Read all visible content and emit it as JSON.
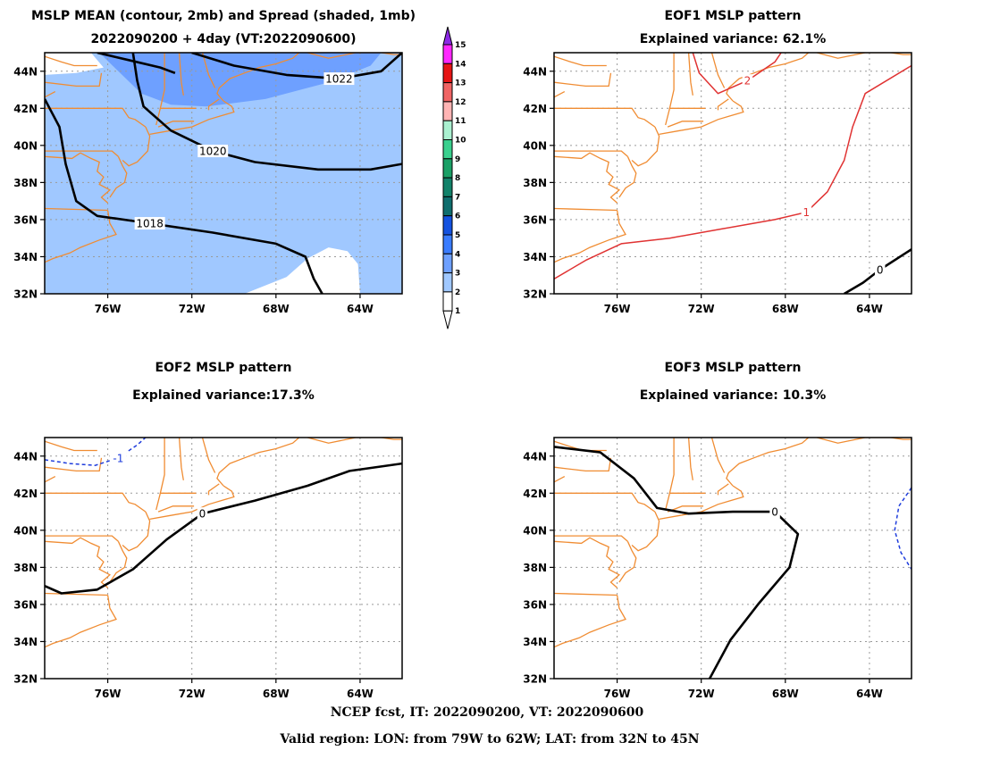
{
  "figure": {
    "footer_line1": "NCEP fcst, IT: 2022090200, VT: 2022090600",
    "footer_line2": "Valid region: LON: from 79W to 62W; LAT: from 32N to 45N"
  },
  "colorbar": {
    "labels": [
      "1",
      "2",
      "3",
      "4",
      "5",
      "6",
      "7",
      "8",
      "9",
      "10",
      "11",
      "12",
      "13",
      "14",
      "15"
    ],
    "colors": [
      "#ffffff",
      "#a0c8ff",
      "#6ea0ff",
      "#3a7cff",
      "#1452e0",
      "#0f6e6e",
      "#12826a",
      "#1aa066",
      "#3ad08e",
      "#aaf0d0",
      "#ffb4b4",
      "#f06464",
      "#e61414",
      "#ff28ff",
      "#8c28e6"
    ]
  },
  "chart_data": [
    {
      "type": "contour",
      "title": "MSLP MEAN (contour, 2mb) and Spread (shaded, 1mb)",
      "subtitle": "2022090200 + 4day (VT:2022090600)",
      "x_ticks": [
        "76W",
        "72W",
        "68W",
        "64W"
      ],
      "y_ticks": [
        "44N",
        "42N",
        "40N",
        "38N",
        "36N",
        "34N",
        "32N"
      ],
      "lon_range": [
        -79,
        -62
      ],
      "lat_range": [
        32,
        45
      ],
      "contours": [
        {
          "label": "1018",
          "color": "#000000",
          "points": [
            [
              -79,
              42.5
            ],
            [
              -78.3,
              41
            ],
            [
              -78,
              39
            ],
            [
              -77.5,
              37
            ],
            [
              -76.5,
              36.2
            ],
            [
              -74,
              35.8
            ],
            [
              -71,
              35.3
            ],
            [
              -68,
              34.7
            ],
            [
              -66.6,
              34
            ],
            [
              -66.2,
              32.8
            ],
            [
              -65.8,
              32
            ]
          ]
        },
        {
          "label": "1020",
          "color": "#000000",
          "points": [
            [
              -74.8,
              45
            ],
            [
              -74.6,
              43.5
            ],
            [
              -74.3,
              42.1
            ],
            [
              -73,
              40.8
            ],
            [
              -71,
              39.7
            ],
            [
              -69,
              39.1
            ],
            [
              -66,
              38.7
            ],
            [
              -63.5,
              38.7
            ],
            [
              -62,
              39
            ]
          ]
        },
        {
          "label": "1022",
          "color": "#000000",
          "points": [
            [
              -72,
              45
            ],
            [
              -70,
              44.3
            ],
            [
              -67.5,
              43.8
            ],
            [
              -65,
              43.6
            ],
            [
              -63,
              44
            ],
            [
              -62,
              45
            ]
          ]
        },
        {
          "label": "",
          "color": "#000000",
          "points": [
            [
              -76.5,
              45
            ],
            [
              -75,
              44.6
            ],
            [
              -73.5,
              44.2
            ],
            [
              -72.8,
              43.9
            ]
          ]
        }
      ],
      "spread_regions": [
        {
          "level": "1",
          "points": [
            [
              -79,
              45
            ],
            [
              -76.8,
              45
            ],
            [
              -76.2,
              44.2
            ],
            [
              -77.5,
              43.9
            ],
            [
              -79,
              43.8
            ]
          ]
        },
        {
          "level": "1",
          "points": [
            [
              -69.5,
              32
            ],
            [
              -67.5,
              32.9
            ],
            [
              -66.5,
              33.9
            ],
            [
              -65.5,
              34.5
            ],
            [
              -64.6,
              34.3
            ],
            [
              -64.1,
              33.6
            ],
            [
              -64,
              32
            ]
          ]
        },
        {
          "level": "3",
          "points": [
            [
              -76.4,
              45
            ],
            [
              -75.5,
              44
            ],
            [
              -74.4,
              42.8
            ],
            [
              -73,
              42.2
            ],
            [
              -71.3,
              42.1
            ],
            [
              -68.5,
              42.5
            ],
            [
              -65.5,
              43.4
            ],
            [
              -63.5,
              44.3
            ],
            [
              -63,
              45
            ]
          ]
        }
      ],
      "annotations": []
    },
    {
      "type": "contour",
      "title": "EOF1 MSLP pattern",
      "subtitle": "Explained variance: 62.1%",
      "x_ticks": [
        "76W",
        "72W",
        "68W",
        "64W"
      ],
      "y_ticks": [
        "44N",
        "42N",
        "40N",
        "38N",
        "36N",
        "34N",
        "32N"
      ],
      "lon_range": [
        -79,
        -62
      ],
      "lat_range": [
        32,
        45
      ],
      "contours": [
        {
          "label": "1",
          "color": "#e03232",
          "points": [
            [
              -79,
              32.8
            ],
            [
              -77.5,
              33.8
            ],
            [
              -75.8,
              34.7
            ],
            [
              -73.5,
              35
            ],
            [
              -71,
              35.5
            ],
            [
              -68.5,
              36
            ],
            [
              -67,
              36.4
            ],
            [
              -66,
              37.5
            ],
            [
              -65.2,
              39.2
            ],
            [
              -64.8,
              41
            ],
            [
              -64.2,
              42.8
            ],
            [
              -62,
              44.3
            ]
          ]
        },
        {
          "label": "2",
          "color": "#e03232",
          "points": [
            [
              -72.4,
              45
            ],
            [
              -72.1,
              43.9
            ],
            [
              -71.2,
              42.8
            ],
            [
              -69.8,
              43.5
            ],
            [
              -68.5,
              44.5
            ],
            [
              -68.2,
              45
            ]
          ]
        },
        {
          "label": "0",
          "color": "#000000",
          "points": [
            [
              -65.2,
              32
            ],
            [
              -64.3,
              32.6
            ],
            [
              -63.5,
              33.3
            ],
            [
              -62,
              34.4
            ]
          ]
        }
      ]
    },
    {
      "type": "contour",
      "title": "EOF2 MSLP pattern",
      "subtitle": "Explained variance:17.3%",
      "x_ticks": [
        "76W",
        "72W",
        "68W",
        "64W"
      ],
      "y_ticks": [
        "44N",
        "42N",
        "40N",
        "38N",
        "36N",
        "34N",
        "32N"
      ],
      "lon_range": [
        -79,
        -62
      ],
      "lat_range": [
        32,
        45
      ],
      "contours": [
        {
          "label": "0",
          "color": "#000000",
          "points": [
            [
              -79,
              37
            ],
            [
              -78.2,
              36.6
            ],
            [
              -76.5,
              36.8
            ],
            [
              -74.8,
              37.9
            ],
            [
              -73.2,
              39.5
            ],
            [
              -71.5,
              40.9
            ],
            [
              -69,
              41.6
            ],
            [
              -66.5,
              42.4
            ],
            [
              -64.5,
              43.2
            ],
            [
              -62,
              43.6
            ]
          ]
        },
        {
          "label": "-1",
          "color": "#1e3cdc",
          "dashed": true,
          "points": [
            [
              -79,
              43.8
            ],
            [
              -77.8,
              43.6
            ],
            [
              -76.6,
              43.5
            ],
            [
              -75.5,
              43.9
            ],
            [
              -74.6,
              44.6
            ],
            [
              -74.2,
              45
            ]
          ]
        }
      ]
    },
    {
      "type": "contour",
      "title": "EOF3 MSLP pattern",
      "subtitle": "Explained variance: 10.3%",
      "x_ticks": [
        "76W",
        "72W",
        "68W",
        "64W"
      ],
      "y_ticks": [
        "44N",
        "42N",
        "40N",
        "38N",
        "36N",
        "34N",
        "32N"
      ],
      "lon_range": [
        -79,
        -62
      ],
      "lat_range": [
        32,
        45
      ],
      "contours": [
        {
          "label": "0",
          "color": "#000000",
          "points": [
            [
              -79,
              44.5
            ],
            [
              -76.8,
              44.2
            ],
            [
              -75.2,
              42.8
            ],
            [
              -74.1,
              41.2
            ],
            [
              -72.6,
              40.9
            ],
            [
              -70.5,
              41
            ],
            [
              -68.5,
              41
            ],
            [
              -67.4,
              39.8
            ],
            [
              -67.8,
              38
            ],
            [
              -69.3,
              36
            ],
            [
              -70.6,
              34.1
            ],
            [
              -71.6,
              32
            ]
          ]
        },
        {
          "label": "",
          "color": "#1e3cdc",
          "dashed": true,
          "points": [
            [
              -62,
              42.3
            ],
            [
              -62.6,
              41.3
            ],
            [
              -62.8,
              40
            ],
            [
              -62.5,
              38.8
            ],
            [
              -62,
              37.9
            ]
          ]
        }
      ]
    }
  ]
}
